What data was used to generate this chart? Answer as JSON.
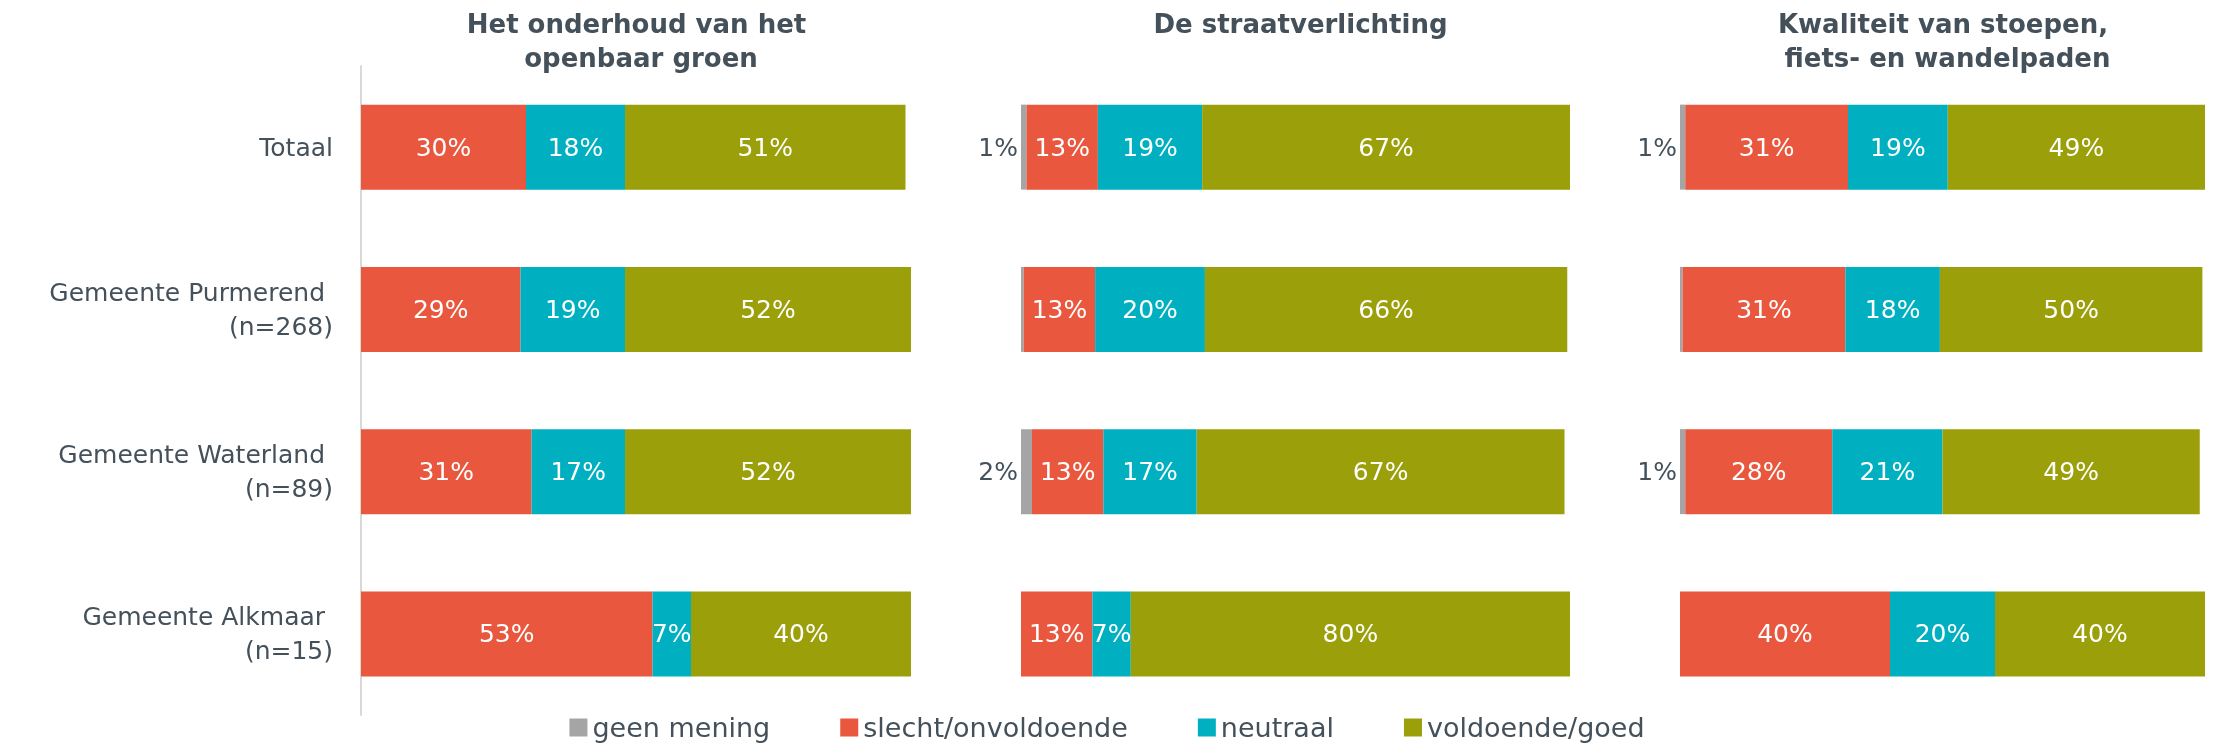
{
  "chart_data": [
    {
      "type": "bar",
      "orientation": "horizontal",
      "stacked": true,
      "title": "Het onderhoud van het openbaar groen",
      "categories": [
        "Totaal",
        "Gemeente Purmerend (n=268)",
        "Gemeente Waterland (n=89)",
        "Gemeente Alkmaar (n=15)"
      ],
      "xlim": [
        0,
        100
      ],
      "tick_labels": "y",
      "legend": "bottom",
      "series": [
        {
          "name": "slecht/onvoldoende",
          "color": "#e8573e",
          "values": [
            30,
            29,
            31,
            53
          ],
          "value_labels": [
            "30%",
            "29%",
            "31%",
            "53%"
          ]
        },
        {
          "name": "neutraal",
          "color": "#00b0c0",
          "values": [
            18,
            19,
            17,
            7
          ],
          "value_labels": [
            "18%",
            "19%",
            "17%",
            "7%"
          ]
        },
        {
          "name": "voldoende/goed",
          "color": "#9a9f0a",
          "values": [
            51,
            52,
            52,
            40
          ],
          "value_labels": [
            "51%",
            "52%",
            "52%",
            "40%"
          ]
        }
      ]
    },
    {
      "type": "bar",
      "orientation": "horizontal",
      "stacked": true,
      "title": "De straatverlichting",
      "categories": [
        "Totaal",
        "Gemeente Purmerend (n=268)",
        "Gemeente Waterland (n=89)",
        "Gemeente Alkmaar (n=15)"
      ],
      "xlim": [
        0,
        100
      ],
      "tick_labels": false,
      "legend": "bottom",
      "series": [
        {
          "name": "geen mening",
          "color": "#a5a5a5",
          "values": [
            1,
            0.5,
            2,
            null
          ],
          "value_labels": [
            "1%",
            null,
            "2%",
            null
          ]
        },
        {
          "name": "slecht/onvoldoende",
          "color": "#e8573e",
          "values": [
            13,
            13,
            13,
            13
          ],
          "value_labels": [
            "13%",
            "13%",
            "13%",
            "13%"
          ]
        },
        {
          "name": "neutraal",
          "color": "#00b0c0",
          "values": [
            19,
            20,
            17,
            7
          ],
          "value_labels": [
            "19%",
            "20%",
            "17%",
            "7%"
          ]
        },
        {
          "name": "voldoende/goed",
          "color": "#9a9f0a",
          "values": [
            67,
            66,
            67,
            80
          ],
          "value_labels": [
            "67%",
            "66%",
            "67%",
            "80%"
          ]
        }
      ]
    },
    {
      "type": "bar",
      "orientation": "horizontal",
      "stacked": true,
      "title": "Kwaliteit van stoepen, fiets- en wandelpaden",
      "categories": [
        "Totaal",
        "Gemeente Purmerend (n=268)",
        "Gemeente Waterland (n=89)",
        "Gemeente Alkmaar (n=15)"
      ],
      "xlim": [
        0,
        100
      ],
      "tick_labels": false,
      "legend": "bottom",
      "series": [
        {
          "name": "geen mening",
          "color": "#a5a5a5",
          "values": [
            1,
            0.5,
            1,
            null
          ],
          "value_labels": [
            "1%",
            null,
            "1%",
            null
          ]
        },
        {
          "name": "slecht/onvoldoende",
          "color": "#e8573e",
          "values": [
            31,
            31,
            28,
            40
          ],
          "value_labels": [
            "31%",
            "31%",
            "28%",
            "40%"
          ]
        },
        {
          "name": "neutraal",
          "color": "#00b0c0",
          "values": [
            19,
            18,
            21,
            20
          ],
          "value_labels": [
            "19%",
            "18%",
            "21%",
            "20%"
          ]
        },
        {
          "name": "voldoende/goed",
          "color": "#9a9f0a",
          "values": [
            49,
            50,
            49,
            40
          ],
          "value_labels": [
            "49%",
            "50%",
            "49%",
            "40%"
          ]
        }
      ]
    }
  ]
}
